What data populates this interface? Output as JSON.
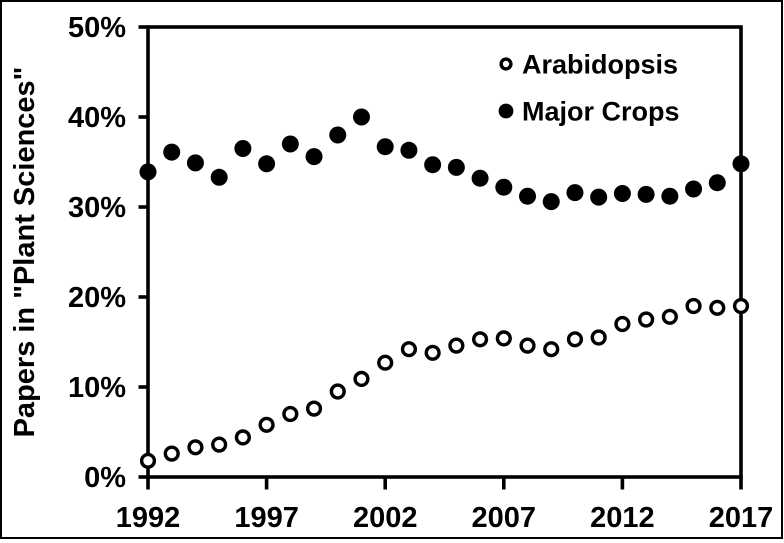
{
  "figure": {
    "background_color": "#ffffff",
    "frame_color": "#000000",
    "data_color": "#000000"
  },
  "chart_data": {
    "type": "scatter",
    "title": "",
    "xlabel": "",
    "ylabel": "Papers in \"Plant Sciences\"",
    "x": [
      1992,
      1993,
      1994,
      1995,
      1996,
      1997,
      1998,
      1999,
      2000,
      2001,
      2002,
      2003,
      2004,
      2005,
      2006,
      2007,
      2008,
      2009,
      2010,
      2011,
      2012,
      2013,
      2014,
      2015,
      2016,
      2017
    ],
    "series": [
      {
        "name": "Arabidopsis",
        "marker": "open-circle",
        "values": [
          1.8,
          2.6,
          3.3,
          3.6,
          4.4,
          5.8,
          7.0,
          7.6,
          9.5,
          10.9,
          12.7,
          14.2,
          13.8,
          14.6,
          15.3,
          15.4,
          14.6,
          14.2,
          15.3,
          15.5,
          17.0,
          17.5,
          17.8,
          19.0,
          18.8,
          19.0
        ]
      },
      {
        "name": "Major Crops",
        "marker": "filled-circle",
        "values": [
          33.9,
          36.1,
          34.9,
          33.3,
          36.5,
          34.8,
          37.0,
          35.6,
          38.0,
          40.0,
          36.7,
          36.3,
          34.7,
          34.4,
          33.2,
          32.2,
          31.2,
          30.6,
          31.6,
          31.1,
          31.5,
          31.4,
          31.2,
          32.0,
          32.7,
          34.8
        ]
      }
    ],
    "xlim": [
      1992,
      2017
    ],
    "ylim": [
      0,
      50
    ],
    "x_ticks": [
      1992,
      1997,
      2002,
      2007,
      2012,
      2017
    ],
    "y_ticks": [
      0,
      10,
      20,
      30,
      40,
      50
    ],
    "y_tick_suffix": "%",
    "grid": false,
    "legend_position": "upper-right-inside"
  }
}
